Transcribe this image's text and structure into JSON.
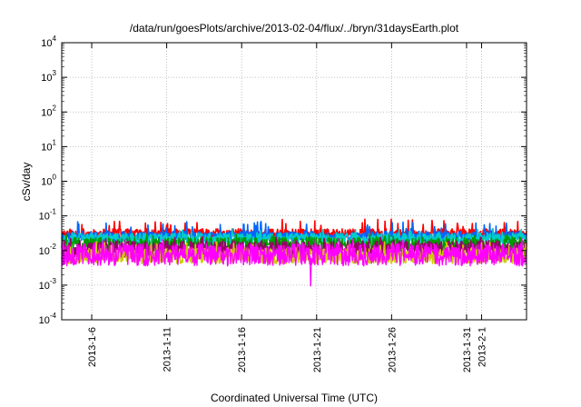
{
  "chart_data": {
    "type": "line",
    "title": "/data/run/goesPlots/archive/2013-02-04/flux/../bryn/31daysEarth.plot",
    "xlabel": "Coordinated Universal Time (UTC)",
    "ylabel": "cSv/day",
    "y_scale": "log",
    "ylim": [
      0.0001,
      10000
    ],
    "y_ticks": [
      {
        "value": 0.0001,
        "base": "10",
        "exp": "-4"
      },
      {
        "value": 0.001,
        "base": "10",
        "exp": "-3"
      },
      {
        "value": 0.01,
        "base": "10",
        "exp": "-2"
      },
      {
        "value": 0.1,
        "base": "10",
        "exp": "-1"
      },
      {
        "value": 1,
        "base": "10",
        "exp": "0"
      },
      {
        "value": 10,
        "base": "10",
        "exp": "1"
      },
      {
        "value": 100,
        "base": "10",
        "exp": "2"
      },
      {
        "value": 1000,
        "base": "10",
        "exp": "3"
      },
      {
        "value": 10000,
        "base": "10",
        "exp": "4"
      }
    ],
    "x_type": "date",
    "xlim": [
      "2013-01-04",
      "2013-02-04"
    ],
    "x_ticks": [
      {
        "date": "2013-01-06",
        "label": "2013-1-6"
      },
      {
        "date": "2013-01-11",
        "label": "2013-1-11"
      },
      {
        "date": "2013-01-16",
        "label": "2013-1-16"
      },
      {
        "date": "2013-01-21",
        "label": "2013-1-21"
      },
      {
        "date": "2013-01-26",
        "label": "2013-1-26"
      },
      {
        "date": "2013-01-31",
        "label": "2013-1-31"
      },
      {
        "date": "2013-02-01",
        "label": "2013-2-1"
      }
    ],
    "grid": true,
    "series": [
      {
        "color": "#ff0000",
        "base": 0.03,
        "spread": 0.15,
        "spike": 0.08,
        "seed": 11
      },
      {
        "color": "#0066ff",
        "base": 0.026,
        "spread": 0.14,
        "spike": 0.07,
        "seed": 23
      },
      {
        "color": "#00cccc",
        "base": 0.022,
        "spread": 0.16,
        "spike": 0.045,
        "seed": 37
      },
      {
        "color": "#009900",
        "base": 0.015,
        "spread": 0.2,
        "spike": 0.03,
        "seed": 41
      },
      {
        "color": "#990066",
        "base": 0.011,
        "spread": 0.24,
        "spike": 0.025,
        "seed": 53
      },
      {
        "color": "#cccc00",
        "base": 0.007,
        "spread": 0.22,
        "spike": 0.018,
        "seed": 67
      },
      {
        "color": "#ff00ff",
        "base": 0.0075,
        "spread": 0.32,
        "spike": 0.022,
        "seed": 79,
        "dip": {
          "date": "2013-01-20.6",
          "value": 0.00095
        }
      }
    ]
  }
}
